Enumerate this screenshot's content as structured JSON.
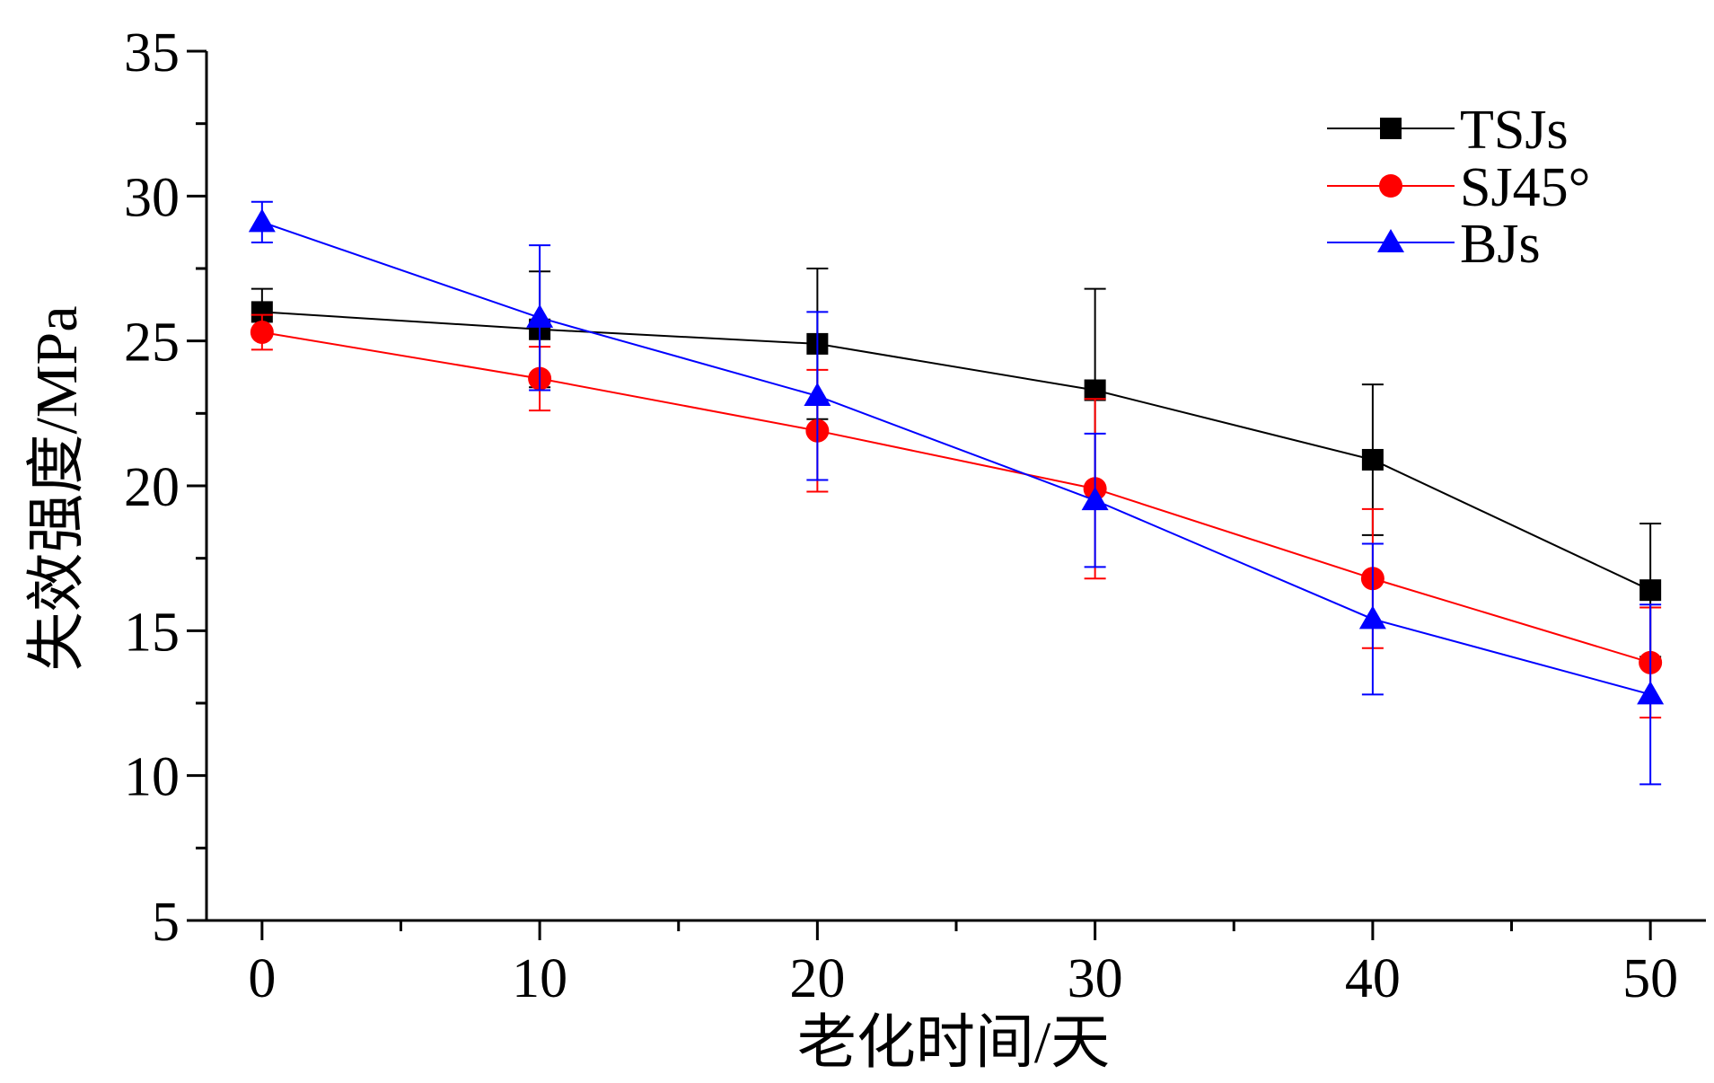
{
  "chart_data": {
    "type": "line",
    "title": "",
    "xlabel": "老化时间/天",
    "ylabel": "失效强度/MPa",
    "xlim": [
      -2,
      52
    ],
    "ylim": [
      5,
      35
    ],
    "x_ticks": [
      0,
      10,
      20,
      30,
      40,
      50
    ],
    "x_tick_labels": [
      "0",
      "10",
      "20",
      "30",
      "40",
      "50"
    ],
    "x_minor_ticks": [
      5,
      15,
      25,
      35,
      45
    ],
    "y_ticks": [
      5,
      10,
      15,
      20,
      25,
      30,
      35
    ],
    "y_tick_labels": [
      "5",
      "10",
      "15",
      "20",
      "25",
      "30",
      "35"
    ],
    "y_minor_ticks": [
      7.5,
      12.5,
      17.5,
      22.5,
      27.5,
      32.5
    ],
    "grid": false,
    "legend_position": "top-right",
    "x": [
      0,
      10,
      20,
      30,
      40,
      50
    ],
    "series": [
      {
        "name": "TSJs",
        "color": "#000000",
        "marker": "square",
        "values": [
          26.0,
          25.4,
          24.9,
          23.3,
          20.9,
          16.4
        ],
        "error": [
          0.8,
          2.0,
          2.6,
          3.5,
          2.6,
          2.3
        ]
      },
      {
        "name": "SJ45°",
        "color": "#ff0000",
        "marker": "circle",
        "values": [
          25.3,
          23.7,
          21.9,
          19.9,
          16.8,
          13.9
        ],
        "error": [
          0.6,
          1.1,
          2.1,
          3.1,
          2.4,
          1.9
        ]
      },
      {
        "name": "BJs",
        "color": "#0000ff",
        "marker": "triangle",
        "values": [
          29.1,
          25.8,
          23.1,
          19.5,
          15.4,
          12.8
        ],
        "error": [
          0.7,
          2.5,
          2.9,
          2.3,
          2.6,
          3.1
        ]
      }
    ]
  }
}
